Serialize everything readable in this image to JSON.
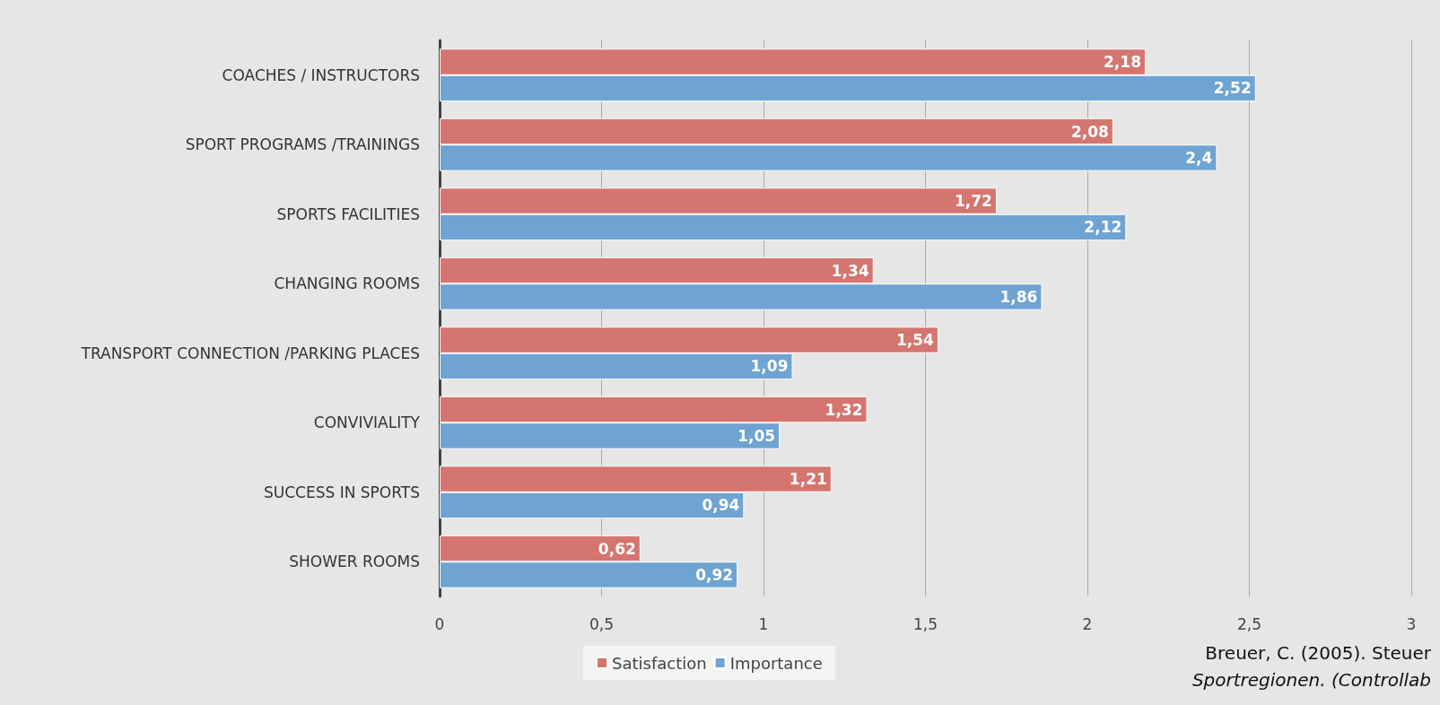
{
  "chart_data": {
    "type": "bar",
    "orientation": "horizontal",
    "categories": [
      "COACHES / INSTRUCTORS",
      "SPORT PROGRAMS /TRAININGS",
      "SPORTS FACILITIES",
      "CHANGING ROOMS",
      "TRANSPORT CONNECTION /PARKING PLACES",
      "CONVIVIALITY",
      "SUCCESS IN SPORTS",
      "SHOWER ROOMS"
    ],
    "series": [
      {
        "name": "Satisfaction",
        "color": "#d4756f",
        "values": [
          2.18,
          2.08,
          1.72,
          1.34,
          1.54,
          1.32,
          1.21,
          0.62
        ],
        "value_labels": [
          "2,18",
          "2,08",
          "1,72",
          "1,34",
          "1,54",
          "1,32",
          "1,21",
          "0,62"
        ]
      },
      {
        "name": "Importance",
        "color": "#6fa3d2",
        "values": [
          2.52,
          2.4,
          2.12,
          1.86,
          1.09,
          1.05,
          0.94,
          0.92
        ],
        "value_labels": [
          "2,52",
          "2,4",
          "2,12",
          "1,86",
          "1,09",
          "1,05",
          "0,94",
          "0,92"
        ]
      }
    ],
    "xlim": [
      0,
      3
    ],
    "xticks": [
      0,
      {
        "value": 0.5,
        "label": "0,5"
      },
      1,
      {
        "value": 1.5,
        "label": "1,5"
      },
      2,
      {
        "value": 2.5,
        "label": "2,5"
      },
      3
    ],
    "grid": "x",
    "legend": "bottom",
    "annotations": [
      "Breuer, C. (2005). Steuer",
      "Sportregionen. (Controllab"
    ]
  }
}
